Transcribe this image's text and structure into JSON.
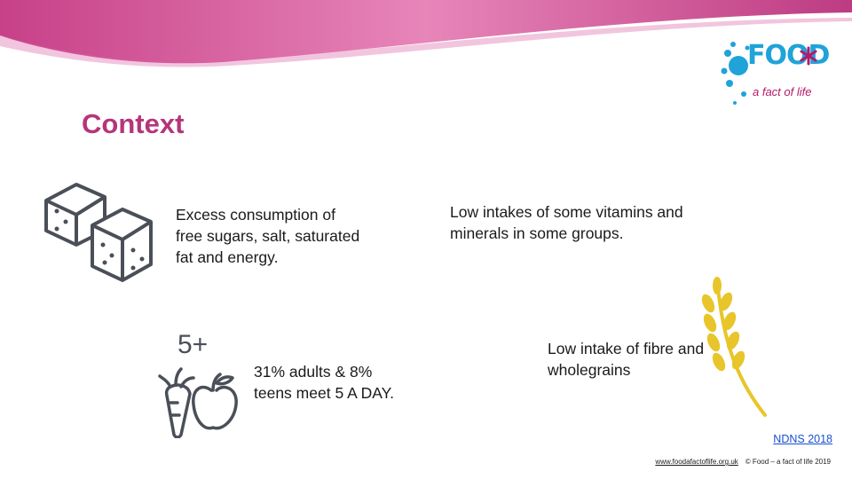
{
  "slide": {
    "title": "Context",
    "points": [
      "Excess consumption of free sugars, salt, saturated fat and energy.",
      "Low intakes of some vitamins and minerals in some groups.",
      "31% adults & 8% teens meet 5 A DAY.",
      "Low intake of fibre and wholegrains"
    ],
    "five_a_day_icon_text": "5+",
    "source": "NDNS 2018"
  },
  "logo": {
    "word": "FOOD",
    "tagline": "a fact of life"
  },
  "footer": {
    "url": "www.foodafactoflife.org.uk",
    "copyright": "© Food – a fact of life 2019"
  },
  "icons": [
    "sugar-cubes-icon",
    "fruit-veg-icon",
    "wheat-icon",
    "asterisk-icon"
  ],
  "colors": {
    "title": "#b5357a",
    "swoosh": "#c2307e",
    "logo_blue": "#1fa3d8",
    "logo_pink": "#b5196b",
    "wheat": "#e8c52a",
    "icon_grey": "#4a4f58",
    "link": "#1a4fd0"
  }
}
